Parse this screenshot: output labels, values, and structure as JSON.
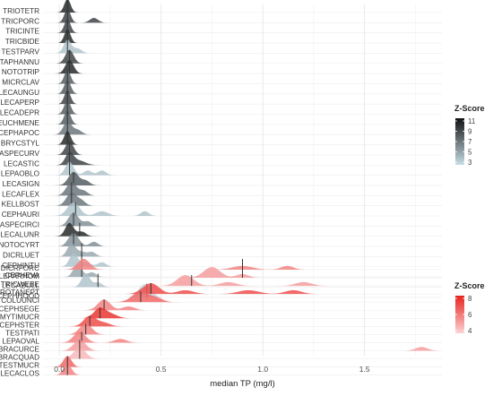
{
  "chart_data": {
    "type": "ridgeline",
    "xlabel": "median TP (mg/l)",
    "xlim": [
      -0.08,
      1.88
    ],
    "x_ticks": [
      0.0,
      0.5,
      1.0,
      1.5
    ],
    "x_tick_labels": [
      "0.0",
      "0.5",
      "1.0",
      "1.5"
    ],
    "grid": true,
    "legend_placement": "right",
    "panels": [
      {
        "name": "upper",
        "legend_title": "Z-Score",
        "legend_ticks": [
          "11",
          "9",
          "7",
          "5",
          "3"
        ],
        "color_low": "#c7dde6",
        "color_high": "#111111",
        "taxa": [
          {
            "label": "TRIOTETR",
            "median": 0.04,
            "z": 10,
            "peaks": [
              [
                0.04,
                0.015
              ]
            ]
          },
          {
            "label": "TRICPORC",
            "median": 0.04,
            "z": 9,
            "peaks": [
              [
                0.04,
                0.015
              ],
              [
                0.17,
                0.02
              ]
            ]
          },
          {
            "label": "TRICINTE",
            "median": 0.04,
            "z": 9,
            "peaks": [
              [
                0.04,
                0.015
              ]
            ]
          },
          {
            "label": "TRICBIDE",
            "median": 0.04,
            "z": 10,
            "peaks": [
              [
                0.04,
                0.015
              ]
            ]
          },
          {
            "label": "TESTPARV",
            "median": 0.04,
            "z": 4,
            "peaks": [
              [
                0.04,
                0.018
              ],
              [
                0.09,
                0.02
              ]
            ]
          },
          {
            "label": "TAPHANNU",
            "median": 0.05,
            "z": 9,
            "peaks": [
              [
                0.05,
                0.02
              ]
            ]
          },
          {
            "label": "NOTOTRIP",
            "median": 0.05,
            "z": 10,
            "peaks": [
              [
                0.05,
                0.02
              ]
            ]
          },
          {
            "label": "MICRCLAV",
            "median": 0.04,
            "z": 8,
            "peaks": [
              [
                0.04,
                0.015
              ]
            ]
          },
          {
            "label": "LECAUNGU",
            "median": 0.04,
            "z": 8,
            "peaks": [
              [
                0.04,
                0.016
              ]
            ]
          },
          {
            "label": "LECAPERP",
            "median": 0.04,
            "z": 9,
            "peaks": [
              [
                0.04,
                0.015
              ]
            ]
          },
          {
            "label": "LECADEPR",
            "median": 0.04,
            "z": 8,
            "peaks": [
              [
                0.04,
                0.016
              ]
            ]
          },
          {
            "label": "EUCHMENE",
            "median": 0.04,
            "z": 8,
            "peaks": [
              [
                0.04,
                0.016
              ]
            ]
          },
          {
            "label": "CEPHAPOC",
            "median": 0.04,
            "z": 7,
            "peaks": [
              [
                0.04,
                0.02
              ],
              [
                0.09,
                0.02
              ]
            ]
          },
          {
            "label": "BRYCSTYL",
            "median": 0.04,
            "z": 10,
            "peaks": [
              [
                0.04,
                0.016
              ]
            ]
          },
          {
            "label": "ASPECURV",
            "median": 0.05,
            "z": 9,
            "peaks": [
              [
                0.05,
                0.02
              ]
            ]
          },
          {
            "label": "LECASTIC",
            "median": 0.05,
            "z": 9,
            "peaks": [
              [
                0.05,
                0.02
              ],
              [
                0.1,
                0.03
              ]
            ]
          },
          {
            "label": "LEPAOBLO",
            "median": 0.05,
            "z": 4,
            "peaks": [
              [
                0.05,
                0.02
              ],
              [
                0.14,
                0.02
              ],
              [
                0.21,
                0.02
              ]
            ]
          },
          {
            "label": "LECASIGN",
            "median": 0.07,
            "z": 8,
            "peaks": [
              [
                0.07,
                0.025
              ],
              [
                0.13,
                0.02
              ]
            ]
          },
          {
            "label": "LECAFLEX",
            "median": 0.06,
            "z": 7,
            "peaks": [
              [
                0.06,
                0.025
              ],
              [
                0.12,
                0.02
              ]
            ]
          },
          {
            "label": "KELLBOST",
            "median": 0.06,
            "z": 7,
            "peaks": [
              [
                0.06,
                0.025
              ],
              [
                0.11,
                0.02
              ]
            ]
          },
          {
            "label": "CEPHAURI",
            "median": 0.08,
            "z": 4,
            "peaks": [
              [
                0.07,
                0.03
              ],
              [
                0.21,
                0.03
              ],
              [
                0.42,
                0.02
              ]
            ]
          },
          {
            "label": "ASPECIRCI",
            "median": 0.07,
            "z": 6,
            "peaks": [
              [
                0.07,
                0.025
              ],
              [
                0.14,
                0.02
              ]
            ]
          },
          {
            "label": "LECALUNR",
            "median": 0.1,
            "z": 10,
            "peaks": [
              [
                0.05,
                0.02
              ],
              [
                0.11,
                0.02
              ]
            ]
          },
          {
            "label": "NOTOCYRT",
            "median": 0.07,
            "z": 6,
            "peaks": [
              [
                0.07,
                0.025
              ],
              [
                0.17,
                0.02
              ]
            ]
          },
          {
            "label": "DICRLUET",
            "median": 0.11,
            "z": 5,
            "peaks": [
              [
                0.06,
                0.02
              ],
              [
                0.11,
                0.02
              ],
              [
                0.16,
                0.02
              ]
            ]
          },
          {
            "label": "CEPHINTU",
            "median": 0.11,
            "z": 4,
            "peaks": [
              [
                0.07,
                0.02
              ],
              [
                0.13,
                0.025
              ],
              [
                0.21,
                0.02
              ]
            ]
          },
          {
            "label": "CEPHEVA",
            "median": 0.11,
            "z": 5,
            "peaks": [
              [
                0.09,
                0.02
              ],
              [
                0.16,
                0.02
              ]
            ]
          },
          {
            "label": "LECABULL",
            "median": 0.19,
            "z": 4,
            "peaks": [
              [
                0.13,
                0.02
              ],
              [
                0.19,
                0.02
              ]
            ]
          },
          {
            "label": "CEPHHOOD",
            "median": 0.43,
            "z": 3,
            "peaks": [
              [
                0.42,
                0.03
              ]
            ]
          }
        ]
      },
      {
        "name": "lower",
        "legend_title": "Z-Score",
        "legend_ticks": [
          "8",
          "6",
          "4"
        ],
        "color_low": "#fbd3d3",
        "color_high": "#e8231f",
        "taxa": [
          {
            "label": "DICRFORC",
            "median": 0.9,
            "z": 6,
            "peaks": [
              [
                0.12,
                0.03
              ],
              [
                0.9,
                0.05
              ],
              [
                1.12,
                0.03
              ]
            ]
          },
          {
            "label": "LEPARHOM",
            "median": 0.9,
            "z": 5,
            "peaks": [
              [
                0.75,
                0.04
              ],
              [
                0.9,
                0.03
              ]
            ]
          },
          {
            "label": "TRICWEBE",
            "median": 0.65,
            "z": 5,
            "peaks": [
              [
                0.62,
                0.04
              ],
              [
                0.83,
                0.04
              ],
              [
                1.2,
                0.04
              ]
            ]
          },
          {
            "label": "ROTANEPT",
            "median": 0.45,
            "z": 8,
            "peaks": [
              [
                0.45,
                0.04
              ],
              [
                0.62,
                0.04
              ],
              [
                0.93,
                0.05
              ],
              [
                1.15,
                0.04
              ]
            ]
          },
          {
            "label": "COLUUNCI",
            "median": 0.4,
            "z": 7,
            "peaks": [
              [
                0.4,
                0.04
              ],
              [
                0.48,
                0.03
              ]
            ]
          },
          {
            "label": "CEPHSEGE",
            "median": 0.22,
            "z": 6,
            "peaks": [
              [
                0.22,
                0.03
              ],
              [
                0.34,
                0.03
              ]
            ]
          },
          {
            "label": "MYTIMUCR",
            "median": 0.2,
            "z": 9,
            "peaks": [
              [
                0.2,
                0.03
              ],
              [
                0.26,
                0.03
              ]
            ]
          },
          {
            "label": "CEPHSTER",
            "median": 0.15,
            "z": 8,
            "peaks": [
              [
                0.15,
                0.03
              ],
              [
                0.22,
                0.03
              ]
            ]
          },
          {
            "label": "TESTPATI",
            "median": 0.13,
            "z": 6,
            "peaks": [
              [
                0.13,
                0.03
              ]
            ]
          },
          {
            "label": "LEPAOVAL",
            "median": 0.11,
            "z": 6,
            "peaks": [
              [
                0.1,
                0.03
              ],
              [
                0.3,
                0.03
              ]
            ]
          },
          {
            "label": "BRACURCE",
            "median": 0.1,
            "z": 5,
            "peaks": [
              [
                0.1,
                0.03
              ],
              [
                1.78,
                0.03
              ]
            ]
          },
          {
            "label": "BRACQUAD",
            "median": 0.1,
            "z": 4,
            "peaks": [
              [
                0.1,
                0.03
              ]
            ]
          },
          {
            "label": "TESTMUCR",
            "median": 0.04,
            "z": 7,
            "peaks": [
              [
                0.04,
                0.02
              ]
            ]
          },
          {
            "label": "LECACLOS",
            "median": 0.04,
            "z": 6,
            "peaks": [
              [
                0.04,
                0.02
              ]
            ]
          }
        ]
      }
    ]
  }
}
